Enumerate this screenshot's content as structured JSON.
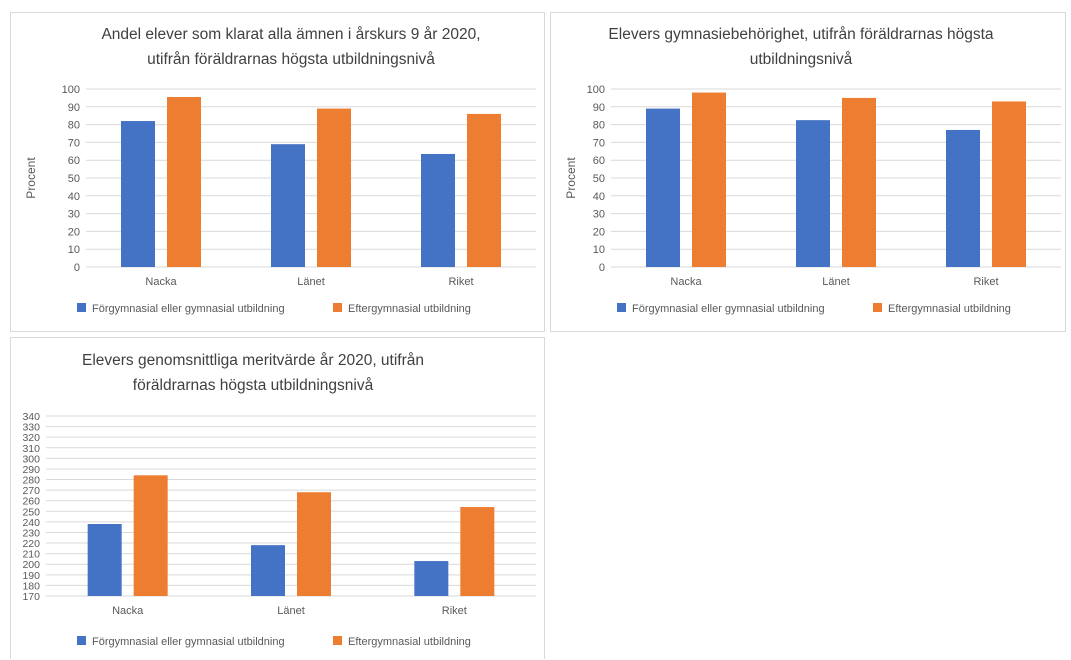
{
  "colors": {
    "series1": "#4472C4",
    "series2": "#ED7D31",
    "grid": "#d9d9d9",
    "text": "#595959",
    "title": "#404040"
  },
  "chart_data": [
    {
      "type": "bar",
      "title_lines": [
        "Andel elever som klarat alla ämnen i årskurs 9 år 2020,",
        "utifrån föräldrarnas högsta utbildningsnivå"
      ],
      "ylabel": "Procent",
      "xlabel": "",
      "categories": [
        "Nacka",
        "Länet",
        "Riket"
      ],
      "ylim": [
        0,
        100
      ],
      "ytick_step": 10,
      "grid": true,
      "legend_position": "bottom",
      "series": [
        {
          "name": "Förgymnasial eller gymnasial utbildning",
          "values": [
            82,
            69,
            63.5
          ]
        },
        {
          "name": "Eftergymnasial utbildning",
          "values": [
            95.5,
            89,
            86
          ]
        }
      ]
    },
    {
      "type": "bar",
      "title_lines": [
        "Elevers gymnasiebehörighet, utifrån föräldrarnas högsta",
        "utbildningsnivå"
      ],
      "ylabel": "Procent",
      "xlabel": "",
      "categories": [
        "Nacka",
        "Länet",
        "Riket"
      ],
      "ylim": [
        0,
        100
      ],
      "ytick_step": 10,
      "grid": true,
      "legend_position": "bottom",
      "series": [
        {
          "name": "Förgymnasial eller gymnasial utbildning",
          "values": [
            89,
            82.5,
            77
          ]
        },
        {
          "name": "Eftergymnasial utbildning",
          "values": [
            98,
            95,
            93
          ]
        }
      ]
    },
    {
      "type": "bar",
      "title_lines": [
        "Elevers genomsnittliga meritvärde år 2020, utifrån",
        "föräldrarnas högsta utbildningsnivå"
      ],
      "ylabel": "",
      "xlabel": "",
      "categories": [
        "Nacka",
        "Länet",
        "Riket"
      ],
      "ylim": [
        170,
        340
      ],
      "ytick_step": 10,
      "grid": true,
      "legend_position": "bottom",
      "series": [
        {
          "name": "Förgymnasial eller gymnasial utbildning",
          "values": [
            238,
            218,
            203
          ]
        },
        {
          "name": "Eftergymnasial utbildning",
          "values": [
            284,
            268,
            254
          ]
        }
      ]
    }
  ]
}
